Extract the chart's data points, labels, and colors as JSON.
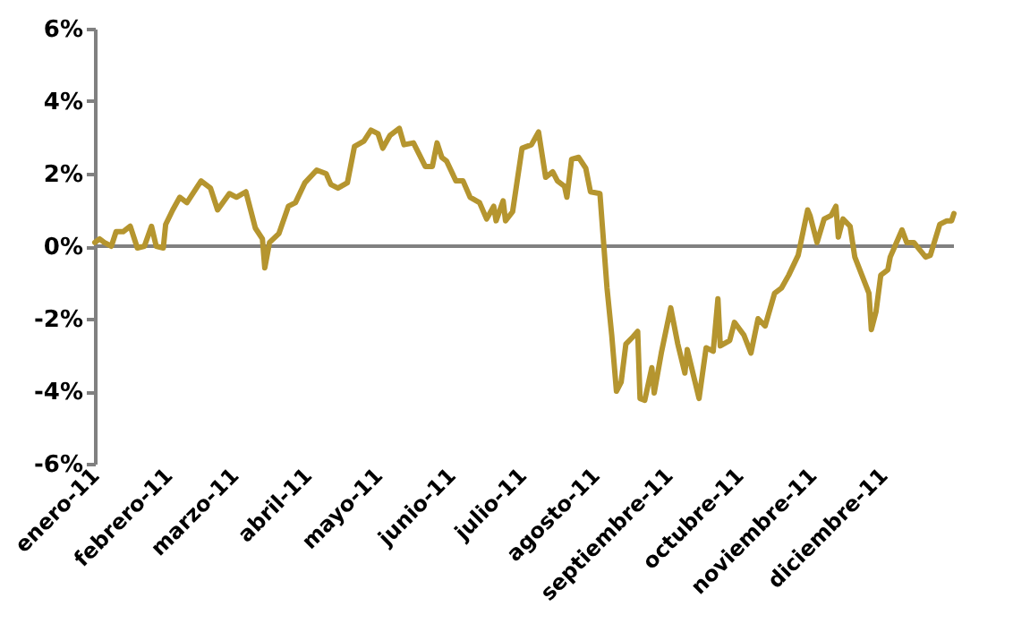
{
  "chart_data": {
    "type": "line",
    "color": "#b5952f",
    "x": [
      "2011-01-01",
      "2011-01-03",
      "2011-01-05",
      "2011-01-08",
      "2011-01-10",
      "2011-01-13",
      "2011-01-16",
      "2011-01-19",
      "2011-01-22",
      "2011-01-25",
      "2011-01-27",
      "2011-01-30",
      "2011-01-31",
      "2011-02-03",
      "2011-02-06",
      "2011-02-09",
      "2011-02-15",
      "2011-02-19",
      "2011-02-22",
      "2011-02-27",
      "2011-03-02",
      "2011-03-06",
      "2011-03-08",
      "2011-03-10",
      "2011-03-13",
      "2011-03-14",
      "2011-03-16",
      "2011-03-20",
      "2011-03-24",
      "2011-03-27",
      "2011-03-31",
      "2011-04-05",
      "2011-04-09",
      "2011-04-11",
      "2011-04-14",
      "2011-04-18",
      "2011-04-21",
      "2011-04-25",
      "2011-04-28",
      "2011-05-01",
      "2011-05-03",
      "2011-05-06",
      "2011-05-10",
      "2011-05-12",
      "2011-05-16",
      "2011-05-21",
      "2011-05-24",
      "2011-05-26",
      "2011-05-28",
      "2011-05-30",
      "2011-06-03",
      "2011-06-06",
      "2011-06-09",
      "2011-06-13",
      "2011-06-16",
      "2011-06-19",
      "2011-06-20",
      "2011-06-23",
      "2011-06-24",
      "2011-06-27",
      "2011-07-01",
      "2011-07-05",
      "2011-07-08",
      "2011-07-11",
      "2011-07-14",
      "2011-07-16",
      "2011-07-19",
      "2011-07-20",
      "2011-07-22",
      "2011-07-25",
      "2011-07-28",
      "2011-07-30",
      "2011-08-03",
      "2011-08-06",
      "2011-08-08",
      "2011-08-10",
      "2011-08-12",
      "2011-08-14",
      "2011-08-17",
      "2011-08-19",
      "2011-08-20",
      "2011-08-22",
      "2011-08-25",
      "2011-08-26",
      "2011-08-29",
      "2011-09-02",
      "2011-09-05",
      "2011-09-08",
      "2011-09-09",
      "2011-09-14",
      "2011-09-17",
      "2011-09-20",
      "2011-09-22",
      "2011-09-23",
      "2011-09-27",
      "2011-09-29",
      "2011-10-03",
      "2011-10-06",
      "2011-10-09",
      "2011-10-12",
      "2011-10-16",
      "2011-10-19",
      "2011-10-22",
      "2011-10-26",
      "2011-10-30",
      "2011-10-31",
      "2011-11-03",
      "2011-11-06",
      "2011-11-09",
      "2011-11-11",
      "2011-11-12",
      "2011-11-14",
      "2011-11-17",
      "2011-11-19",
      "2011-11-22",
      "2011-11-25",
      "2011-11-26",
      "2011-11-28",
      "2011-11-30",
      "2011-12-03",
      "2011-12-04",
      "2011-12-06",
      "2011-12-09",
      "2011-12-11",
      "2011-12-14",
      "2011-12-19",
      "2011-12-21",
      "2011-12-25",
      "2011-12-28",
      "2011-12-30",
      "2011-12-31"
    ],
    "values": [
      0.1,
      0.2,
      0.1,
      0.0,
      0.4,
      0.4,
      0.55,
      -0.05,
      0.0,
      0.55,
      0.0,
      -0.05,
      0.6,
      1.0,
      1.35,
      1.2,
      1.8,
      1.6,
      1.0,
      1.45,
      1.35,
      1.5,
      1.0,
      0.5,
      0.2,
      -0.6,
      0.1,
      0.35,
      1.1,
      1.2,
      1.75,
      2.1,
      2.0,
      1.7,
      1.6,
      1.75,
      2.75,
      2.9,
      3.2,
      3.1,
      2.7,
      3.05,
      3.25,
      2.8,
      2.85,
      2.2,
      2.2,
      2.85,
      2.45,
      2.35,
      1.8,
      1.8,
      1.35,
      1.2,
      0.75,
      1.1,
      0.7,
      1.25,
      0.7,
      0.95,
      2.7,
      2.8,
      3.15,
      1.9,
      2.05,
      1.8,
      1.65,
      1.35,
      2.4,
      2.45,
      2.15,
      1.5,
      1.45,
      -1.15,
      -2.45,
      -4.0,
      -3.75,
      -2.7,
      -2.5,
      -2.35,
      -4.2,
      -4.25,
      -3.35,
      -4.05,
      -2.95,
      -1.7,
      -2.7,
      -3.5,
      -2.85,
      -4.2,
      -2.8,
      -2.9,
      -1.45,
      -2.75,
      -2.6,
      -2.1,
      -2.45,
      -2.95,
      -2.0,
      -2.2,
      -1.3,
      -1.15,
      -0.8,
      -0.25,
      1.0,
      0.85,
      0.1,
      0.75,
      0.85,
      1.1,
      0.25,
      0.75,
      0.55,
      -0.3,
      -0.8,
      -1.3,
      -2.3,
      -1.8,
      -0.8,
      -0.65,
      -0.3,
      0.0,
      0.45,
      0.1,
      0.1,
      -0.3,
      -0.25,
      0.6,
      0.7,
      0.7,
      0.9
    ],
    "xlim": [
      "2011-01-01",
      "2011-12-31"
    ],
    "xticks": [
      {
        "value": "2011-01-01",
        "label": "enero-11"
      },
      {
        "value": "2011-02-01",
        "label": "febrero-11"
      },
      {
        "value": "2011-03-01",
        "label": "marzo-11"
      },
      {
        "value": "2011-04-01",
        "label": "abril-11"
      },
      {
        "value": "2011-05-01",
        "label": "mayo-11"
      },
      {
        "value": "2011-06-01",
        "label": "junio-11"
      },
      {
        "value": "2011-07-01",
        "label": "julio-11"
      },
      {
        "value": "2011-08-01",
        "label": "agosto-11"
      },
      {
        "value": "2011-09-01",
        "label": "septiembre-11"
      },
      {
        "value": "2011-10-01",
        "label": "octubre-11"
      },
      {
        "value": "2011-11-01",
        "label": "noviembre-11"
      },
      {
        "value": "2011-12-01",
        "label": "diciembre-11"
      }
    ],
    "ylim": [
      -6,
      6
    ],
    "yticks": [
      {
        "value": -6,
        "label": "-6%"
      },
      {
        "value": -4,
        "label": "-4%"
      },
      {
        "value": -2,
        "label": "-2%"
      },
      {
        "value": 0,
        "label": "0%"
      },
      {
        "value": 2,
        "label": "2%"
      },
      {
        "value": 4,
        "label": "4%"
      },
      {
        "value": 6,
        "label": "6%"
      }
    ],
    "ref_lines": [
      {
        "axis": "y",
        "value": 0,
        "color": "#808080"
      }
    ],
    "grid": false
  }
}
